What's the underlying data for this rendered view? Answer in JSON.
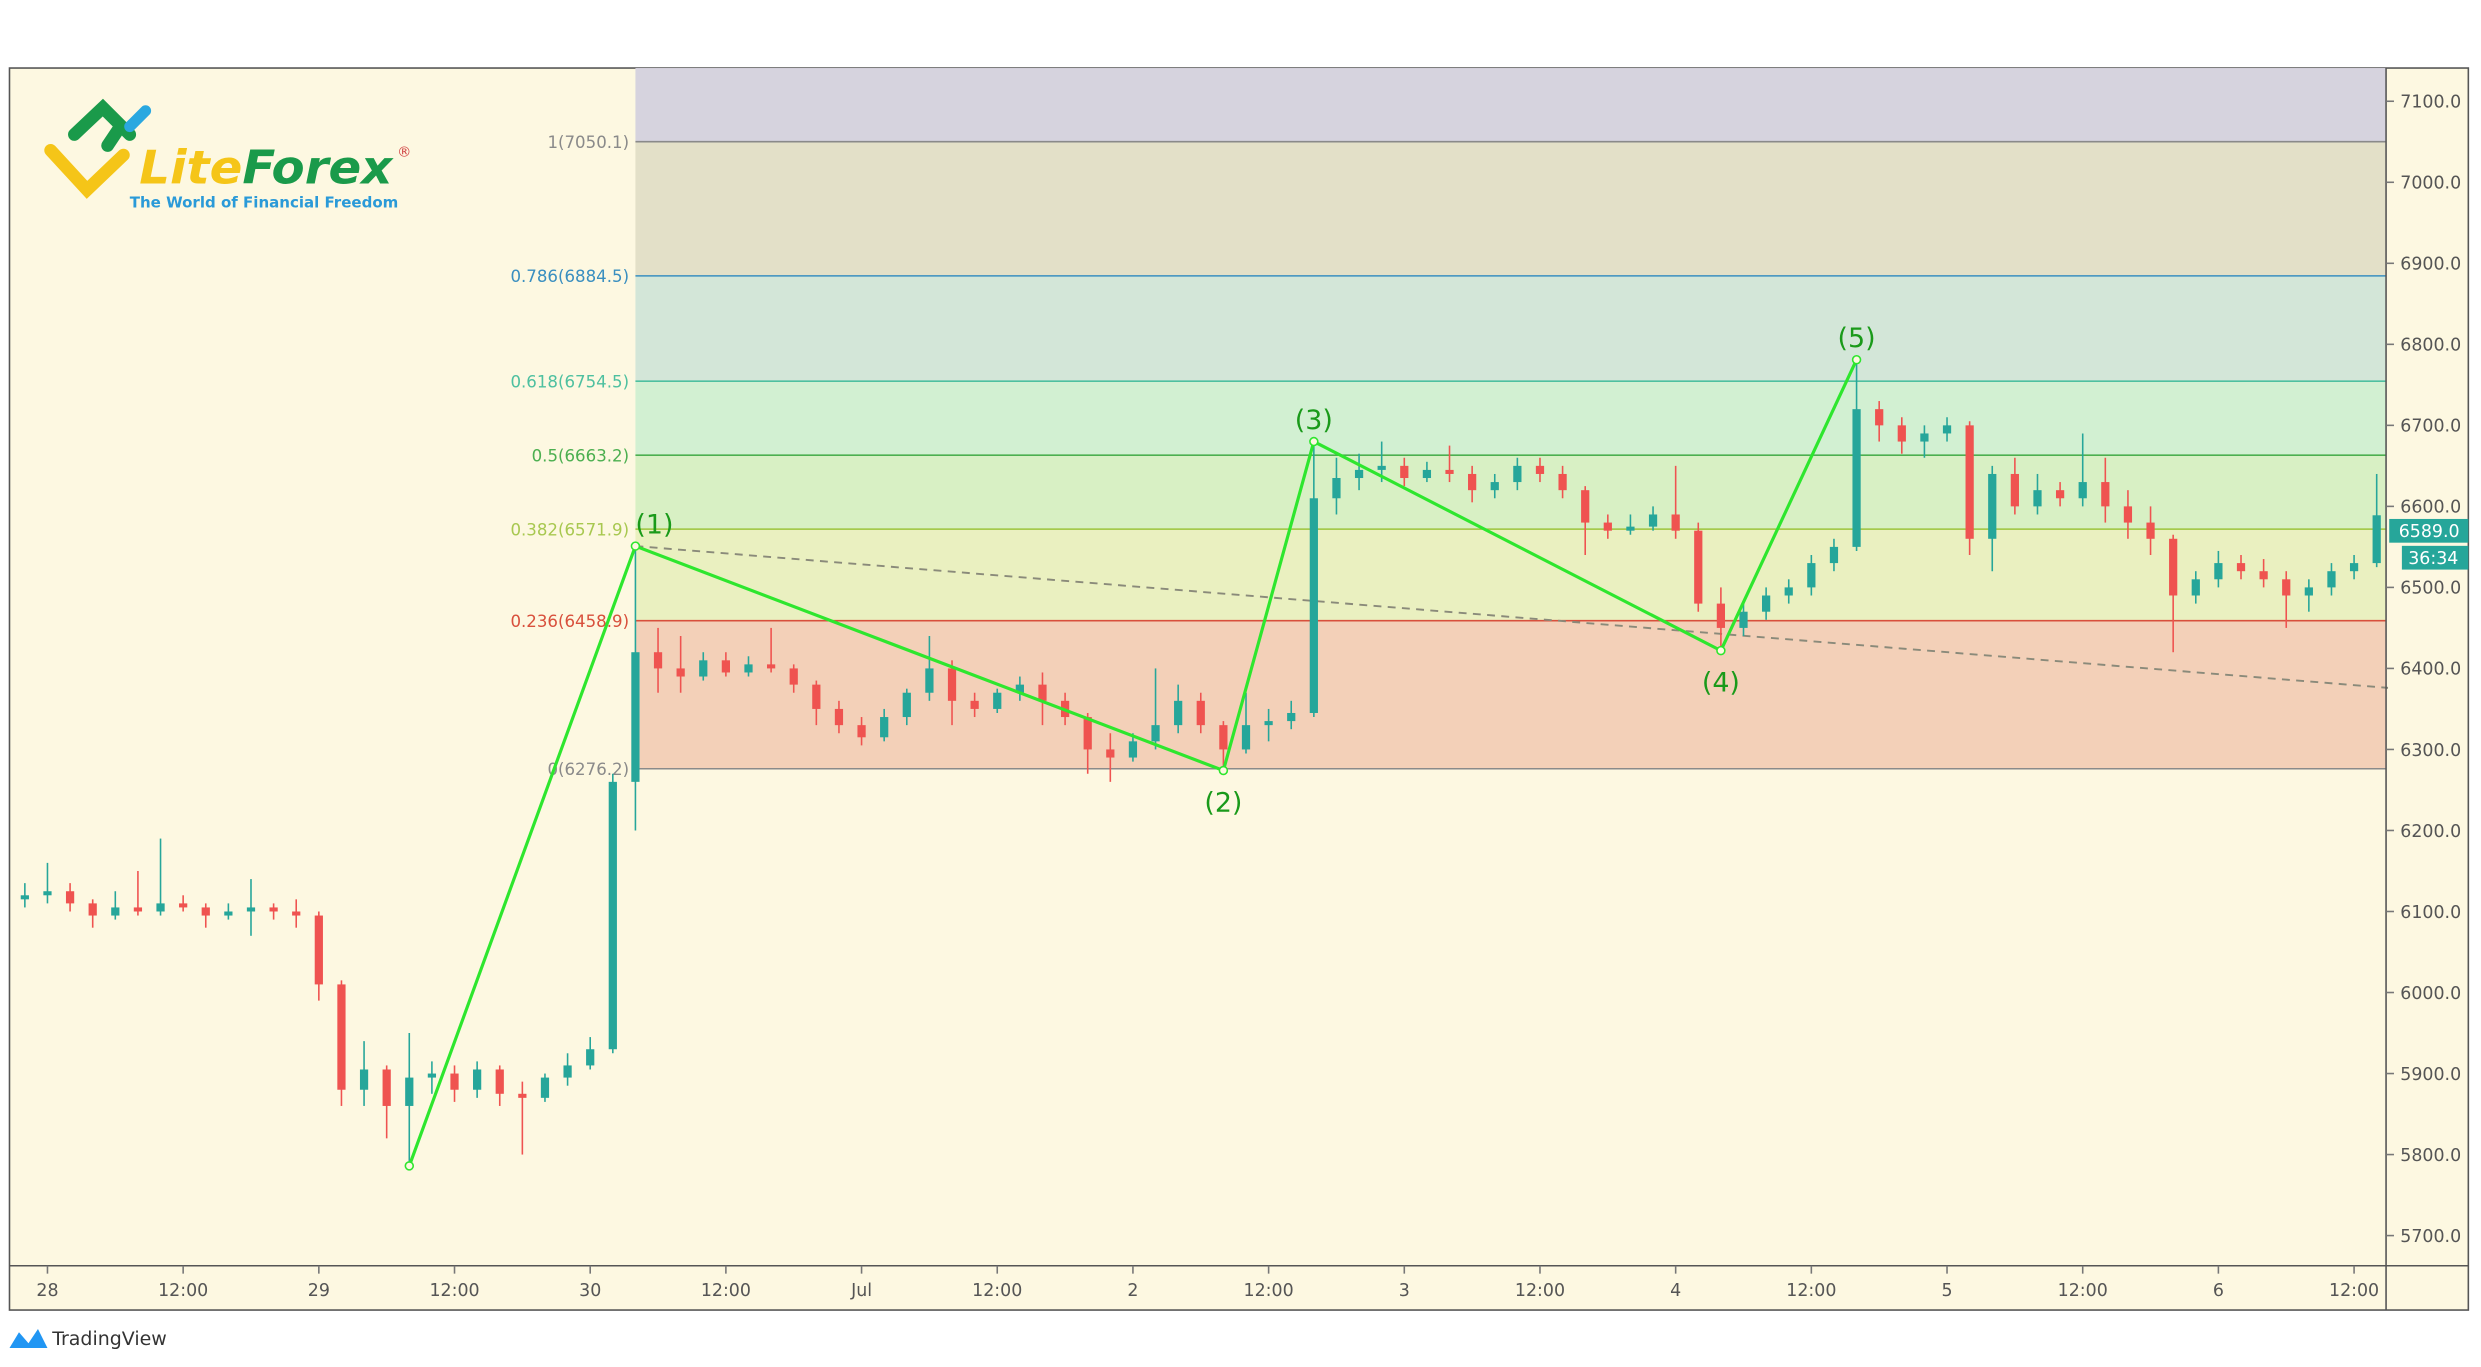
{
  "logo": {
    "name": "LiteForex",
    "name_part1": "Lite",
    "name_part2": "Forex",
    "registered": "®",
    "tagline": "The World of Financial Freedom"
  },
  "footer": {
    "brand": "TradingView"
  },
  "colors": {
    "background": "#fdf8e1",
    "up": "#26a69a",
    "down": "#ef5350",
    "wave": "#2ee62e",
    "wave_label": "#1a9a1a",
    "price_tag": "#26a69a"
  },
  "price_tag": {
    "price": "6589.0",
    "countdown": "36:34"
  },
  "chart_data": {
    "type": "candlestick",
    "title": "",
    "xlabel": "",
    "ylabel": "",
    "ylim": [
      5660,
      7140
    ],
    "grid": false,
    "y_ticks": [
      "7100.0",
      "7000.0",
      "6900.0",
      "6800.0",
      "6700.0",
      "6600.0",
      "6500.0",
      "6400.0",
      "6300.0",
      "6200.0",
      "6100.0",
      "6000.0",
      "5900.0",
      "5800.0",
      "5700.0"
    ],
    "x_ticks": [
      {
        "label": "28",
        "t": "06-28 00:00"
      },
      {
        "label": "12:00",
        "t": "06-28 12:00"
      },
      {
        "label": "29",
        "t": "06-29 00:00"
      },
      {
        "label": "12:00",
        "t": "06-29 12:00"
      },
      {
        "label": "30",
        "t": "06-30 00:00"
      },
      {
        "label": "12:00",
        "t": "06-30 12:00"
      },
      {
        "label": "Jul",
        "t": "07-01 00:00"
      },
      {
        "label": "12:00",
        "t": "07-01 12:00"
      },
      {
        "label": "2",
        "t": "07-02 00:00"
      },
      {
        "label": "12:00",
        "t": "07-02 12:00"
      },
      {
        "label": "3",
        "t": "07-03 00:00"
      },
      {
        "label": "12:00",
        "t": "07-03 12:00"
      },
      {
        "label": "4",
        "t": "07-04 00:00"
      },
      {
        "label": "12:00",
        "t": "07-04 12:00"
      },
      {
        "label": "5",
        "t": "07-05 00:00"
      },
      {
        "label": "12:00",
        "t": "07-05 12:00"
      },
      {
        "label": "6",
        "t": "07-06 00:00"
      },
      {
        "label": "12:00",
        "t": "07-06 12:00"
      }
    ],
    "fibonacci": {
      "start_time": "06-30 04:00",
      "top_fill": "#d6d3de",
      "levels": [
        {
          "label": "1(7050.1)",
          "price": 7050.1,
          "line": "#8a8a8a",
          "text": "#8a8a8a",
          "fill_below": "#e3e0c8"
        },
        {
          "label": "0.786(6884.5)",
          "price": 6884.5,
          "line": "#3a8fc0",
          "text": "#3a8fc0",
          "fill_below": "#d3e6d8"
        },
        {
          "label": "0.618(6754.5)",
          "price": 6754.5,
          "line": "#4ec0a0",
          "text": "#4ec0a0",
          "fill_below": "#d2f0d2"
        },
        {
          "label": "0.5(6663.2)",
          "price": 6663.2,
          "line": "#4caf50",
          "text": "#4caf50",
          "fill_below": "#d8f0c4"
        },
        {
          "label": "0.382(6571.9)",
          "price": 6571.9,
          "line": "#9cc43c",
          "text": "#a8c850",
          "fill_below": "#eaf0c0"
        },
        {
          "label": "0.236(6458.9)",
          "price": 6458.9,
          "line": "#d8503c",
          "text": "#d8503c",
          "fill_below": "#f3d0b8"
        },
        {
          "label": "0(6276.2)",
          "price": 6276.2,
          "line": "#8a8a8a",
          "text": "#8a8a8a",
          "fill_below": null
        }
      ]
    },
    "elliott_wave": [
      {
        "label": "",
        "t": "06-29 08:00",
        "price": 5786
      },
      {
        "label": "(1)",
        "t": "06-30 04:00",
        "price": 6551
      },
      {
        "label": "(2)",
        "t": "07-02 08:00",
        "price": 6274
      },
      {
        "label": "(3)",
        "t": "07-02 16:00",
        "price": 6680
      },
      {
        "label": "(4)",
        "t": "07-04 04:00",
        "price": 6422
      },
      {
        "label": "(5)",
        "t": "07-04 16:00",
        "price": 6781
      }
    ],
    "trendline": {
      "from": {
        "t": "06-30 04:00",
        "price": 6551
      },
      "to": {
        "t": "07-06 15:00",
        "price": 6376
      },
      "style": "dashed"
    },
    "candles_columns": [
      "time",
      "open",
      "high",
      "low",
      "close"
    ],
    "candles": [
      [
        "06-27 22:00",
        6115,
        6135,
        6105,
        6120
      ],
      [
        "06-28 00:00",
        6120,
        6160,
        6110,
        6125
      ],
      [
        "06-28 02:00",
        6125,
        6135,
        6100,
        6110
      ],
      [
        "06-28 04:00",
        6110,
        6115,
        6080,
        6095
      ],
      [
        "06-28 06:00",
        6095,
        6125,
        6090,
        6105
      ],
      [
        "06-28 08:00",
        6105,
        6150,
        6095,
        6100
      ],
      [
        "06-28 10:00",
        6100,
        6190,
        6095,
        6110
      ],
      [
        "06-28 12:00",
        6110,
        6120,
        6100,
        6105
      ],
      [
        "06-28 14:00",
        6105,
        6110,
        6080,
        6095
      ],
      [
        "06-28 16:00",
        6095,
        6110,
        6090,
        6100
      ],
      [
        "06-28 18:00",
        6100,
        6140,
        6070,
        6105
      ],
      [
        "06-28 20:00",
        6105,
        6110,
        6090,
        6100
      ],
      [
        "06-28 22:00",
        6100,
        6115,
        6080,
        6095
      ],
      [
        "06-29 00:00",
        6095,
        6100,
        5990,
        6010
      ],
      [
        "06-29 02:00",
        6010,
        6015,
        5860,
        5880
      ],
      [
        "06-29 04:00",
        5880,
        5940,
        5860,
        5905
      ],
      [
        "06-29 06:00",
        5905,
        5910,
        5820,
        5860
      ],
      [
        "06-29 08:00",
        5860,
        5950,
        5786,
        5895
      ],
      [
        "06-29 10:00",
        5895,
        5915,
        5875,
        5900
      ],
      [
        "06-29 12:00",
        5900,
        5910,
        5865,
        5880
      ],
      [
        "06-29 14:00",
        5880,
        5915,
        5870,
        5905
      ],
      [
        "06-29 16:00",
        5905,
        5910,
        5860,
        5875
      ],
      [
        "06-29 18:00",
        5875,
        5890,
        5800,
        5870
      ],
      [
        "06-29 20:00",
        5870,
        5900,
        5865,
        5895
      ],
      [
        "06-29 22:00",
        5895,
        5925,
        5885,
        5910
      ],
      [
        "06-30 00:00",
        5910,
        5945,
        5905,
        5930
      ],
      [
        "06-30 02:00",
        5930,
        6270,
        5925,
        6260
      ],
      [
        "06-30 04:00",
        6260,
        6551,
        6200,
        6420
      ],
      [
        "06-30 06:00",
        6420,
        6450,
        6370,
        6400
      ],
      [
        "06-30 08:00",
        6400,
        6440,
        6370,
        6390
      ],
      [
        "06-30 10:00",
        6390,
        6420,
        6385,
        6410
      ],
      [
        "06-30 12:00",
        6410,
        6420,
        6390,
        6395
      ],
      [
        "06-30 14:00",
        6395,
        6415,
        6390,
        6405
      ],
      [
        "06-30 16:00",
        6405,
        6450,
        6395,
        6400
      ],
      [
        "06-30 18:00",
        6400,
        6405,
        6370,
        6380
      ],
      [
        "06-30 20:00",
        6380,
        6385,
        6330,
        6350
      ],
      [
        "06-30 22:00",
        6350,
        6360,
        6320,
        6330
      ],
      [
        "07-01 00:00",
        6330,
        6340,
        6305,
        6315
      ],
      [
        "07-01 02:00",
        6315,
        6350,
        6310,
        6340
      ],
      [
        "07-01 04:00",
        6340,
        6375,
        6330,
        6370
      ],
      [
        "07-01 06:00",
        6370,
        6440,
        6360,
        6400
      ],
      [
        "07-01 08:00",
        6400,
        6410,
        6330,
        6360
      ],
      [
        "07-01 10:00",
        6360,
        6370,
        6340,
        6350
      ],
      [
        "07-01 12:00",
        6350,
        6375,
        6345,
        6370
      ],
      [
        "07-01 14:00",
        6370,
        6390,
        6360,
        6380
      ],
      [
        "07-01 16:00",
        6380,
        6395,
        6330,
        6360
      ],
      [
        "07-01 18:00",
        6360,
        6370,
        6330,
        6340
      ],
      [
        "07-01 20:00",
        6340,
        6345,
        6270,
        6300
      ],
      [
        "07-01 22:00",
        6300,
        6320,
        6260,
        6290
      ],
      [
        "07-02 00:00",
        6290,
        6320,
        6285,
        6310
      ],
      [
        "07-02 02:00",
        6310,
        6400,
        6300,
        6330
      ],
      [
        "07-02 04:00",
        6330,
        6380,
        6320,
        6360
      ],
      [
        "07-02 06:00",
        6360,
        6370,
        6320,
        6330
      ],
      [
        "07-02 08:00",
        6330,
        6335,
        6274,
        6300
      ],
      [
        "07-02 10:00",
        6300,
        6370,
        6295,
        6330
      ],
      [
        "07-02 12:00",
        6330,
        6350,
        6310,
        6335
      ],
      [
        "07-02 14:00",
        6335,
        6360,
        6325,
        6345
      ],
      [
        "07-02 16:00",
        6345,
        6680,
        6340,
        6610
      ],
      [
        "07-02 18:00",
        6610,
        6660,
        6590,
        6635
      ],
      [
        "07-02 20:00",
        6635,
        6665,
        6620,
        6645
      ],
      [
        "07-02 22:00",
        6645,
        6680,
        6630,
        6650
      ],
      [
        "07-03 00:00",
        6650,
        6660,
        6625,
        6635
      ],
      [
        "07-03 02:00",
        6635,
        6655,
        6630,
        6645
      ],
      [
        "07-03 04:00",
        6645,
        6675,
        6630,
        6640
      ],
      [
        "07-03 06:00",
        6640,
        6650,
        6605,
        6620
      ],
      [
        "07-03 08:00",
        6620,
        6640,
        6610,
        6630
      ],
      [
        "07-03 10:00",
        6630,
        6660,
        6620,
        6650
      ],
      [
        "07-03 12:00",
        6650,
        6660,
        6630,
        6640
      ],
      [
        "07-03 14:00",
        6640,
        6650,
        6610,
        6620
      ],
      [
        "07-03 16:00",
        6620,
        6625,
        6540,
        6580
      ],
      [
        "07-03 18:00",
        6580,
        6590,
        6560,
        6570
      ],
      [
        "07-03 20:00",
        6570,
        6590,
        6565,
        6575
      ],
      [
        "07-03 22:00",
        6575,
        6600,
        6570,
        6590
      ],
      [
        "07-04 00:00",
        6590,
        6650,
        6560,
        6570
      ],
      [
        "07-04 02:00",
        6570,
        6580,
        6470,
        6480
      ],
      [
        "07-04 04:00",
        6480,
        6500,
        6422,
        6450
      ],
      [
        "07-04 06:00",
        6450,
        6480,
        6440,
        6470
      ],
      [
        "07-04 08:00",
        6470,
        6500,
        6460,
        6490
      ],
      [
        "07-04 10:00",
        6490,
        6510,
        6480,
        6500
      ],
      [
        "07-04 12:00",
        6500,
        6540,
        6490,
        6530
      ],
      [
        "07-04 14:00",
        6530,
        6560,
        6520,
        6550
      ],
      [
        "07-04 16:00",
        6550,
        6781,
        6545,
        6720
      ],
      [
        "07-04 18:00",
        6720,
        6730,
        6680,
        6700
      ],
      [
        "07-04 20:00",
        6700,
        6710,
        6665,
        6680
      ],
      [
        "07-04 22:00",
        6680,
        6700,
        6660,
        6690
      ],
      [
        "07-05 00:00",
        6690,
        6710,
        6680,
        6700
      ],
      [
        "07-05 02:00",
        6700,
        6705,
        6540,
        6560
      ],
      [
        "07-05 04:00",
        6560,
        6650,
        6520,
        6640
      ],
      [
        "07-05 06:00",
        6640,
        6660,
        6590,
        6600
      ],
      [
        "07-05 08:00",
        6600,
        6640,
        6590,
        6620
      ],
      [
        "07-05 10:00",
        6620,
        6630,
        6600,
        6610
      ],
      [
        "07-05 12:00",
        6610,
        6690,
        6600,
        6630
      ],
      [
        "07-05 14:00",
        6630,
        6660,
        6580,
        6600
      ],
      [
        "07-05 16:00",
        6600,
        6620,
        6560,
        6580
      ],
      [
        "07-05 18:00",
        6580,
        6600,
        6540,
        6560
      ],
      [
        "07-05 20:00",
        6560,
        6565,
        6420,
        6490
      ],
      [
        "07-05 22:00",
        6490,
        6520,
        6480,
        6510
      ],
      [
        "07-06 00:00",
        6510,
        6545,
        6500,
        6530
      ],
      [
        "07-06 02:00",
        6530,
        6540,
        6510,
        6520
      ],
      [
        "07-06 04:00",
        6520,
        6535,
        6500,
        6510
      ],
      [
        "07-06 06:00",
        6510,
        6520,
        6450,
        6490
      ],
      [
        "07-06 08:00",
        6490,
        6510,
        6470,
        6500
      ],
      [
        "07-06 10:00",
        6500,
        6530,
        6490,
        6520
      ],
      [
        "07-06 12:00",
        6520,
        6540,
        6510,
        6530
      ],
      [
        "07-06 14:00",
        6530,
        6640,
        6525,
        6589
      ]
    ]
  }
}
